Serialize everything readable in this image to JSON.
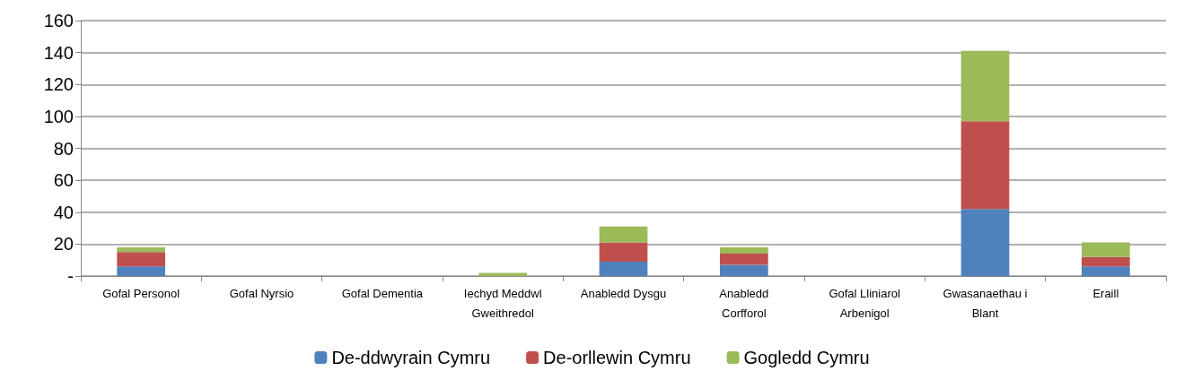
{
  "chart_data": {
    "type": "bar",
    "stacked": true,
    "categories": [
      "Gofal Personol",
      "Gofal Nyrsio",
      "Gofal Dementia",
      "Iechyd Meddwl\nGweithredol",
      "Anabledd Dysgu",
      "Anabledd\nCorfforol",
      "Gofal Lliniarol\nArbenigol",
      "Gwasanaethau i\nBlant",
      "Eraill"
    ],
    "series": [
      {
        "name": "De-ddwyrain Cymru",
        "color": "#4f81bd",
        "values": [
          6,
          0,
          0,
          0,
          9,
          7,
          0,
          42,
          6
        ]
      },
      {
        "name": "De-orllewin Cymru",
        "color": "#c0504d",
        "values": [
          9,
          0,
          0,
          0,
          12,
          7,
          0,
          55,
          6
        ]
      },
      {
        "name": "Gogledd Cymru",
        "color": "#9bbb59",
        "values": [
          3,
          0,
          0,
          2,
          10,
          4,
          0,
          44,
          9
        ]
      }
    ],
    "ylim": [
      0,
      160
    ],
    "yticks": [
      {
        "value": 0,
        "label": "-"
      },
      20,
      40,
      60,
      80,
      100,
      120,
      140,
      160
    ],
    "grid": "y",
    "legend": "bottom"
  }
}
